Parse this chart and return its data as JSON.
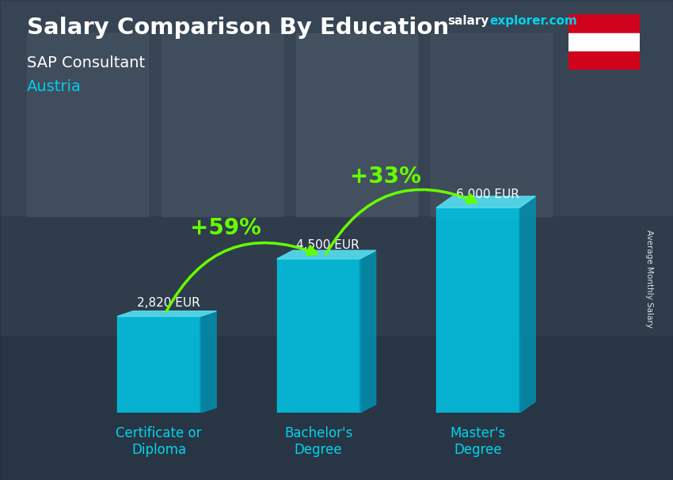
{
  "title": "Salary Comparison By Education",
  "subtitle1": "SAP Consultant",
  "subtitle2": "Austria",
  "categories": [
    "Certificate or\nDiploma",
    "Bachelor's\nDegree",
    "Master's\nDegree"
  ],
  "values": [
    2820,
    4500,
    6000
  ],
  "value_labels": [
    "2,820 EUR",
    "4,500 EUR",
    "6,000 EUR"
  ],
  "pct_labels": [
    "+59%",
    "+33%"
  ],
  "bar_face_color": "#00c8e8",
  "bar_top_color": "#55dff0",
  "bar_side_color": "#0090b0",
  "cat_color": "#00d4ee",
  "title_color": "#ffffff",
  "subtitle1_color": "#ffffff",
  "subtitle2_color": "#00ccee",
  "value_color": "#ffffff",
  "pct_color": "#66ff00",
  "arrow_color": "#66ff00",
  "website_salary": "salary",
  "website_rest": "explorer.com",
  "ylabel": "Average Monthly Salary",
  "bar_width": 0.52,
  "ylim": [
    0,
    8000
  ],
  "x_positions": [
    0.5,
    1.5,
    2.5
  ],
  "flag_red": "#d0021b",
  "flag_white": "#ffffff",
  "bg_dark": "#2a3545",
  "bg_mid": "#3d4f60"
}
